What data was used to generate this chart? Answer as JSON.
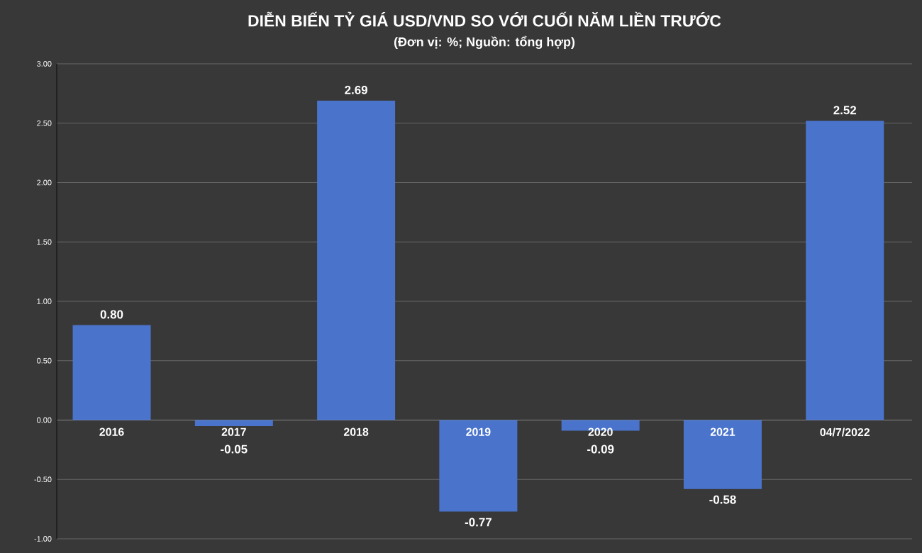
{
  "chart_data": {
    "type": "bar",
    "title": "DIỄN BIẾN TỶ GIÁ USD/VND SO VỚI CUỐI NĂM LIỀN TRƯỚC",
    "subtitle": "(Đơn vị: %; Nguồn: tổng hợp)",
    "categories": [
      "2016",
      "2017",
      "2018",
      "2019",
      "2020",
      "2021",
      "04/7/2022"
    ],
    "values": [
      0.8,
      -0.05,
      2.69,
      -0.77,
      -0.09,
      -0.58,
      2.52
    ],
    "value_labels": [
      "0.80",
      "-0.05",
      "2.69",
      "-0.77",
      "-0.09",
      "-0.58",
      "2.52"
    ],
    "color": "#4a74cc",
    "ylim": [
      -1,
      3
    ],
    "yticks": [
      {
        "value": -1,
        "label": "-1.00"
      },
      {
        "value": -0.5,
        "label": "-0.50"
      },
      {
        "value": 0,
        "label": "0.00"
      },
      {
        "value": 0.5,
        "label": "0.50"
      },
      {
        "value": 1,
        "label": "1.00"
      },
      {
        "value": 1.5,
        "label": "1.50"
      },
      {
        "value": 2,
        "label": "2.00"
      },
      {
        "value": 2.5,
        "label": "2.50"
      },
      {
        "value": 3,
        "label": "3.00"
      }
    ],
    "grid": "y"
  }
}
